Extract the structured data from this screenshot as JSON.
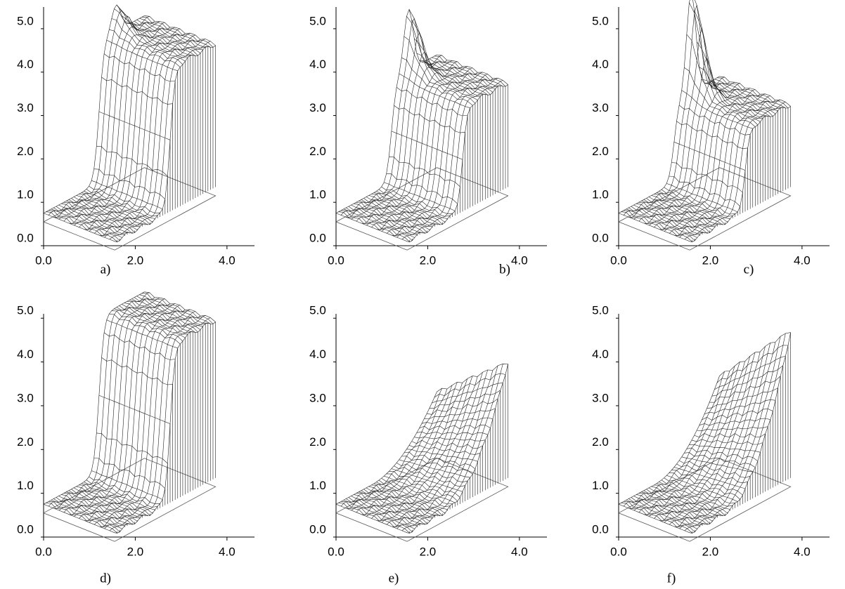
{
  "chart_data": [
    {
      "type": "wireframe",
      "caption": "a)",
      "xlim": [
        0,
        4.6
      ],
      "ylim": [
        0,
        5.5
      ],
      "xticks": [
        {
          "value": 0,
          "label": "0.0"
        },
        {
          "value": 2,
          "label": "2.0"
        },
        {
          "value": 4,
          "label": "4.0"
        }
      ],
      "yticks": [
        {
          "value": 0,
          "label": "0.0"
        },
        {
          "value": 1,
          "label": "1.0"
        },
        {
          "value": 2,
          "label": "2.0"
        },
        {
          "value": 3,
          "label": "3.0"
        },
        {
          "value": 4,
          "label": "4.0"
        },
        {
          "value": 5,
          "label": "5.0"
        }
      ]
    },
    {
      "type": "wireframe",
      "caption": "b)",
      "xlim": [
        0,
        4.6
      ],
      "ylim": [
        0,
        5.5
      ],
      "xticks": [
        {
          "value": 0,
          "label": "0.0"
        },
        {
          "value": 2,
          "label": "2.0"
        },
        {
          "value": 4,
          "label": "4.0"
        }
      ],
      "yticks": [
        {
          "value": 0,
          "label": "0.0"
        },
        {
          "value": 1,
          "label": "1.0"
        },
        {
          "value": 2,
          "label": "2.0"
        },
        {
          "value": 3,
          "label": "3.0"
        },
        {
          "value": 4,
          "label": "4.0"
        },
        {
          "value": 5,
          "label": "5.0"
        }
      ]
    },
    {
      "type": "wireframe",
      "caption": "c)",
      "xlim": [
        0,
        4.6
      ],
      "ylim": [
        0,
        5.5
      ],
      "xticks": [
        {
          "value": 0,
          "label": "0.0"
        },
        {
          "value": 2,
          "label": "2.0"
        },
        {
          "value": 4,
          "label": "4.0"
        }
      ],
      "yticks": [
        {
          "value": 0,
          "label": "0.0"
        },
        {
          "value": 1,
          "label": "1.0"
        },
        {
          "value": 2,
          "label": "2.0"
        },
        {
          "value": 3,
          "label": "3.0"
        },
        {
          "value": 4,
          "label": "4.0"
        },
        {
          "value": 5,
          "label": "5.0"
        }
      ]
    },
    {
      "type": "wireframe",
      "caption": "d)",
      "xlim": [
        0,
        4.6
      ],
      "ylim": [
        0,
        5.1
      ],
      "xticks": [
        {
          "value": 0,
          "label": "0.0"
        },
        {
          "value": 2,
          "label": "2.0"
        },
        {
          "value": 4,
          "label": "4.0"
        }
      ],
      "yticks": [
        {
          "value": 0,
          "label": "0.0"
        },
        {
          "value": 1,
          "label": "1.0"
        },
        {
          "value": 2,
          "label": "2.0"
        },
        {
          "value": 3,
          "label": "3.0"
        },
        {
          "value": 4,
          "label": "4.0"
        },
        {
          "value": 5,
          "label": "5.0"
        }
      ]
    },
    {
      "type": "wireframe",
      "caption": "e)",
      "xlim": [
        0,
        4.6
      ],
      "ylim": [
        0,
        5.1
      ],
      "xticks": [
        {
          "value": 0,
          "label": "0.0"
        },
        {
          "value": 2,
          "label": "2.0"
        },
        {
          "value": 4,
          "label": "4.0"
        }
      ],
      "yticks": [
        {
          "value": 0,
          "label": "0.0"
        },
        {
          "value": 1,
          "label": "1.0"
        },
        {
          "value": 2,
          "label": "2.0"
        },
        {
          "value": 3,
          "label": "3.0"
        },
        {
          "value": 4,
          "label": "4.0"
        },
        {
          "value": 5,
          "label": "5.0"
        }
      ]
    },
    {
      "type": "wireframe",
      "caption": "f)",
      "xlim": [
        0,
        4.6
      ],
      "ylim": [
        0,
        5.1
      ],
      "xticks": [
        {
          "value": 0,
          "label": "0.0"
        },
        {
          "value": 2,
          "label": "2.0"
        },
        {
          "value": 4,
          "label": "4.0"
        }
      ],
      "yticks": [
        {
          "value": 0,
          "label": "0.0"
        },
        {
          "value": 1,
          "label": "1.0"
        },
        {
          "value": 2,
          "label": "2.0"
        },
        {
          "value": 3,
          "label": "3.0"
        },
        {
          "value": 4,
          "label": "4.0"
        },
        {
          "value": 5,
          "label": "5.0"
        }
      ]
    }
  ]
}
